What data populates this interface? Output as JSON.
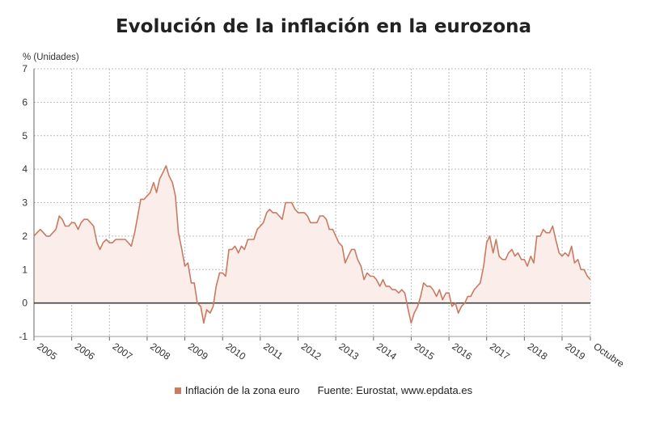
{
  "chart_data": {
    "type": "area",
    "title": "Evolución de la inflación en la eurozona",
    "ylabel": "% (Unidades)",
    "xlabel": "",
    "ylim": [
      -1,
      7
    ],
    "yticks": [
      "-1",
      "0",
      "1",
      "2",
      "3",
      "4",
      "5",
      "6",
      "7"
    ],
    "xticks": [
      "2005",
      "2006",
      "2007",
      "2008",
      "2009",
      "2010",
      "2011",
      "2012",
      "2013",
      "2014",
      "2015",
      "2016",
      "2017",
      "2018",
      "2019",
      "Octubre"
    ],
    "grid": true,
    "legend_position": "bottom",
    "colors": {
      "line": "#c87a62",
      "fill": "#fbeeea",
      "zero_line": "#333333",
      "grid": "#bbbbbb"
    },
    "series": [
      {
        "name": "Inflación de la zona euro",
        "points": [
          [
            2005.0,
            2.0
          ],
          [
            2005.08,
            2.1
          ],
          [
            2005.17,
            2.2
          ],
          [
            2005.25,
            2.1
          ],
          [
            2005.33,
            2.0
          ],
          [
            2005.42,
            2.0
          ],
          [
            2005.5,
            2.1
          ],
          [
            2005.58,
            2.2
          ],
          [
            2005.67,
            2.6
          ],
          [
            2005.75,
            2.5
          ],
          [
            2005.83,
            2.3
          ],
          [
            2005.92,
            2.3
          ],
          [
            2006.0,
            2.4
          ],
          [
            2006.08,
            2.4
          ],
          [
            2006.17,
            2.2
          ],
          [
            2006.25,
            2.4
          ],
          [
            2006.33,
            2.5
          ],
          [
            2006.42,
            2.5
          ],
          [
            2006.5,
            2.4
          ],
          [
            2006.58,
            2.3
          ],
          [
            2006.67,
            1.8
          ],
          [
            2006.75,
            1.6
          ],
          [
            2006.83,
            1.8
          ],
          [
            2006.92,
            1.9
          ],
          [
            2007.0,
            1.8
          ],
          [
            2007.08,
            1.8
          ],
          [
            2007.17,
            1.9
          ],
          [
            2007.25,
            1.9
          ],
          [
            2007.33,
            1.9
          ],
          [
            2007.42,
            1.9
          ],
          [
            2007.5,
            1.8
          ],
          [
            2007.58,
            1.7
          ],
          [
            2007.67,
            2.1
          ],
          [
            2007.75,
            2.6
          ],
          [
            2007.83,
            3.1
          ],
          [
            2007.92,
            3.1
          ],
          [
            2008.0,
            3.2
          ],
          [
            2008.08,
            3.3
          ],
          [
            2008.17,
            3.6
          ],
          [
            2008.25,
            3.3
          ],
          [
            2008.33,
            3.7
          ],
          [
            2008.42,
            3.9
          ],
          [
            2008.5,
            4.1
          ],
          [
            2008.58,
            3.8
          ],
          [
            2008.67,
            3.6
          ],
          [
            2008.75,
            3.2
          ],
          [
            2008.83,
            2.1
          ],
          [
            2008.92,
            1.6
          ],
          [
            2009.0,
            1.1
          ],
          [
            2009.08,
            1.2
          ],
          [
            2009.17,
            0.6
          ],
          [
            2009.25,
            0.6
          ],
          [
            2009.33,
            0.0
          ],
          [
            2009.42,
            -0.1
          ],
          [
            2009.5,
            -0.6
          ],
          [
            2009.58,
            -0.2
          ],
          [
            2009.67,
            -0.3
          ],
          [
            2009.75,
            -0.1
          ],
          [
            2009.83,
            0.5
          ],
          [
            2009.92,
            0.9
          ],
          [
            2010.0,
            0.9
          ],
          [
            2010.08,
            0.8
          ],
          [
            2010.17,
            1.6
          ],
          [
            2010.25,
            1.6
          ],
          [
            2010.33,
            1.7
          ],
          [
            2010.42,
            1.5
          ],
          [
            2010.5,
            1.7
          ],
          [
            2010.58,
            1.6
          ],
          [
            2010.67,
            1.9
          ],
          [
            2010.75,
            1.9
          ],
          [
            2010.83,
            1.9
          ],
          [
            2010.92,
            2.2
          ],
          [
            2011.0,
            2.3
          ],
          [
            2011.08,
            2.4
          ],
          [
            2011.17,
            2.7
          ],
          [
            2011.25,
            2.8
          ],
          [
            2011.33,
            2.7
          ],
          [
            2011.42,
            2.7
          ],
          [
            2011.5,
            2.6
          ],
          [
            2011.58,
            2.5
          ],
          [
            2011.67,
            3.0
          ],
          [
            2011.75,
            3.0
          ],
          [
            2011.83,
            3.0
          ],
          [
            2011.92,
            2.8
          ],
          [
            2012.0,
            2.7
          ],
          [
            2012.08,
            2.7
          ],
          [
            2012.17,
            2.7
          ],
          [
            2012.25,
            2.6
          ],
          [
            2012.33,
            2.4
          ],
          [
            2012.42,
            2.4
          ],
          [
            2012.5,
            2.4
          ],
          [
            2012.58,
            2.6
          ],
          [
            2012.67,
            2.6
          ],
          [
            2012.75,
            2.5
          ],
          [
            2012.83,
            2.2
          ],
          [
            2012.92,
            2.2
          ],
          [
            2013.0,
            2.0
          ],
          [
            2013.08,
            1.8
          ],
          [
            2013.17,
            1.7
          ],
          [
            2013.25,
            1.2
          ],
          [
            2013.33,
            1.4
          ],
          [
            2013.42,
            1.6
          ],
          [
            2013.5,
            1.6
          ],
          [
            2013.58,
            1.3
          ],
          [
            2013.67,
            1.1
          ],
          [
            2013.75,
            0.7
          ],
          [
            2013.83,
            0.9
          ],
          [
            2013.92,
            0.8
          ],
          [
            2014.0,
            0.8
          ],
          [
            2014.08,
            0.7
          ],
          [
            2014.17,
            0.5
          ],
          [
            2014.25,
            0.7
          ],
          [
            2014.33,
            0.5
          ],
          [
            2014.42,
            0.5
          ],
          [
            2014.5,
            0.4
          ],
          [
            2014.58,
            0.4
          ],
          [
            2014.67,
            0.3
          ],
          [
            2014.75,
            0.4
          ],
          [
            2014.83,
            0.3
          ],
          [
            2014.92,
            -0.2
          ],
          [
            2015.0,
            -0.6
          ],
          [
            2015.08,
            -0.3
          ],
          [
            2015.17,
            -0.1
          ],
          [
            2015.25,
            0.2
          ],
          [
            2015.33,
            0.6
          ],
          [
            2015.42,
            0.5
          ],
          [
            2015.5,
            0.5
          ],
          [
            2015.58,
            0.4
          ],
          [
            2015.67,
            0.2
          ],
          [
            2015.75,
            0.4
          ],
          [
            2015.83,
            0.1
          ],
          [
            2015.92,
            0.3
          ],
          [
            2016.0,
            0.3
          ],
          [
            2016.08,
            -0.1
          ],
          [
            2016.17,
            0.0
          ],
          [
            2016.25,
            -0.3
          ],
          [
            2016.33,
            -0.1
          ],
          [
            2016.42,
            0.0
          ],
          [
            2016.5,
            0.2
          ],
          [
            2016.58,
            0.2
          ],
          [
            2016.67,
            0.4
          ],
          [
            2016.75,
            0.5
          ],
          [
            2016.83,
            0.6
          ],
          [
            2016.92,
            1.1
          ],
          [
            2017.0,
            1.8
          ],
          [
            2017.08,
            2.0
          ],
          [
            2017.17,
            1.5
          ],
          [
            2017.25,
            1.9
          ],
          [
            2017.33,
            1.4
          ],
          [
            2017.42,
            1.3
          ],
          [
            2017.5,
            1.3
          ],
          [
            2017.58,
            1.5
          ],
          [
            2017.67,
            1.6
          ],
          [
            2017.75,
            1.4
          ],
          [
            2017.83,
            1.5
          ],
          [
            2017.92,
            1.3
          ],
          [
            2018.0,
            1.3
          ],
          [
            2018.08,
            1.1
          ],
          [
            2018.17,
            1.4
          ],
          [
            2018.25,
            1.2
          ],
          [
            2018.33,
            2.0
          ],
          [
            2018.42,
            2.0
          ],
          [
            2018.5,
            2.2
          ],
          [
            2018.58,
            2.1
          ],
          [
            2018.67,
            2.1
          ],
          [
            2018.75,
            2.3
          ],
          [
            2018.83,
            1.9
          ],
          [
            2018.92,
            1.5
          ],
          [
            2019.0,
            1.4
          ],
          [
            2019.08,
            1.5
          ],
          [
            2019.17,
            1.4
          ],
          [
            2019.25,
            1.7
          ],
          [
            2019.33,
            1.2
          ],
          [
            2019.42,
            1.3
          ],
          [
            2019.5,
            1.0
          ],
          [
            2019.58,
            1.0
          ],
          [
            2019.67,
            0.8
          ],
          [
            2019.75,
            0.7
          ]
        ]
      }
    ]
  },
  "legend": {
    "label": "Inflación de la zona euro",
    "source": "Fuente: Eurostat, www.epdata.es"
  }
}
